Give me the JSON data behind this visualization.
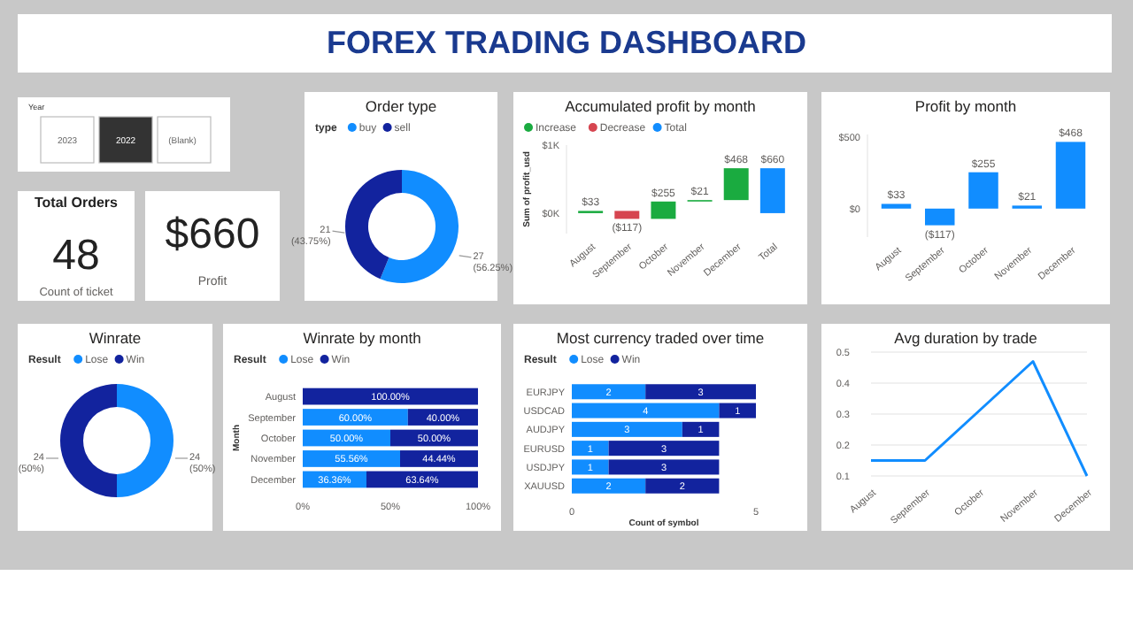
{
  "chart_data": [
    {
      "type": "other",
      "title": "FOREX TRADING DASHBOARD",
      "annotations": [
        "Year",
        "2023",
        "2022",
        "(Blank)",
        "Total Orders",
        "48",
        "Count of ticket",
        "$660",
        "Profit"
      ]
    },
    {
      "type": "donut",
      "title": "Order type",
      "legend_title": "type",
      "legend": "top left",
      "categories": [
        "buy",
        "sell"
      ],
      "values": [
        27,
        21
      ],
      "colors": [
        "#118dff",
        "#12239e"
      ],
      "value_labels": [
        "27 (56.25%)",
        "21 (43.75%)"
      ]
    },
    {
      "type": "bar",
      "title": "Accumulated profit by month",
      "ylabel": "Sum of profit_usd",
      "legend": "top left",
      "categories": [
        "August",
        "September",
        "October",
        "November",
        "December",
        "Total"
      ],
      "series": [
        {
          "name": "Increase",
          "color": "#1aab40",
          "base": [
            0,
            null,
            -84,
            171,
            192,
            null
          ],
          "values": [
            33,
            null,
            255,
            21,
            468,
            null
          ],
          "value_labels": [
            "$33",
            null,
            "$255",
            "$21",
            "$468",
            null
          ]
        },
        {
          "name": "Decrease",
          "color": "#d64550",
          "base": [
            null,
            33,
            null,
            null,
            null,
            null
          ],
          "values": [
            null,
            -117,
            null,
            null,
            null,
            null
          ],
          "value_labels": [
            null,
            "($117)",
            null,
            null,
            null,
            null
          ]
        },
        {
          "name": "Total",
          "color": "#118dff",
          "base": [
            null,
            null,
            null,
            null,
            null,
            0
          ],
          "values": [
            null,
            null,
            null,
            null,
            null,
            660
          ],
          "value_labels": [
            null,
            null,
            null,
            null,
            null,
            "$660"
          ]
        }
      ],
      "ylim": [
        -300,
        1000
      ],
      "yticks": [
        {
          "value": 0,
          "label": "$0K"
        },
        {
          "value": 1000,
          "label": "$1K"
        }
      ]
    },
    {
      "type": "bar",
      "title": "Profit by month",
      "categories": [
        "August",
        "September",
        "October",
        "November",
        "December"
      ],
      "values": [
        33,
        -117,
        255,
        21,
        468
      ],
      "color": "#118dff",
      "value_labels": [
        "$33",
        "($117)",
        "$255",
        "$21",
        "$468"
      ],
      "ylim": [
        -200,
        520
      ],
      "yticks": [
        {
          "value": 0,
          "label": "$0"
        },
        {
          "value": 500,
          "label": "$500"
        }
      ]
    },
    {
      "type": "donut",
      "title": "Winrate",
      "legend_title": "Result",
      "legend": "top left",
      "categories": [
        "Lose",
        "Win"
      ],
      "values": [
        24,
        24
      ],
      "colors": [
        "#118dff",
        "#12239e"
      ],
      "value_labels": [
        "24 (50%)",
        "24 (50%)"
      ]
    },
    {
      "type": "bar",
      "title": "Winrate by month",
      "legend_title": "Result",
      "legend": "top left",
      "orientation": "horizontal",
      "stacked": true,
      "ylabel": "Month",
      "categories": [
        "August",
        "September",
        "October",
        "November",
        "December"
      ],
      "series": [
        {
          "name": "Lose",
          "color": "#118dff",
          "values": [
            null,
            60,
            50,
            55.56,
            36.36
          ],
          "value_labels": [
            null,
            "60.00%",
            "50.00%",
            "55.56%",
            "36.36%"
          ]
        },
        {
          "name": "Win",
          "color": "#12239e",
          "values": [
            100,
            40,
            50,
            44.44,
            63.64
          ],
          "value_labels": [
            "100.00%",
            "40.00%",
            "50.00%",
            "44.44%",
            "63.64%"
          ]
        }
      ],
      "xlim": [
        0,
        100
      ],
      "xticks": [
        {
          "value": 0,
          "label": "0%"
        },
        {
          "value": 50,
          "label": "50%"
        },
        {
          "value": 100,
          "label": "100%"
        }
      ]
    },
    {
      "type": "bar",
      "title": "Most currency traded over time",
      "legend_title": "Result",
      "legend": "top left",
      "orientation": "horizontal",
      "stacked": true,
      "data_labels": true,
      "xlabel": "Count of symbol",
      "categories": [
        "EURJPY",
        "USDCAD",
        "AUDJPY",
        "EURUSD",
        "USDJPY",
        "XAUUSD"
      ],
      "series": [
        {
          "name": "Lose",
          "color": "#118dff",
          "values": [
            2,
            4,
            3,
            1,
            1,
            2
          ]
        },
        {
          "name": "Win",
          "color": "#12239e",
          "values": [
            3,
            1,
            1,
            3,
            3,
            2
          ]
        }
      ],
      "xlim": [
        0,
        5
      ],
      "xticks": [
        0,
        5
      ]
    },
    {
      "type": "line",
      "title": "Avg duration by trade",
      "categories": [
        "August",
        "September",
        "October",
        "November",
        "December"
      ],
      "values": [
        0.15,
        0.15,
        0.31,
        0.47,
        0.1
      ],
      "color": "#118dff",
      "grid": "y",
      "ylim": [
        0.1,
        0.5
      ],
      "yticks": [
        0.1,
        0.2,
        0.3,
        0.4,
        0.5
      ]
    }
  ]
}
